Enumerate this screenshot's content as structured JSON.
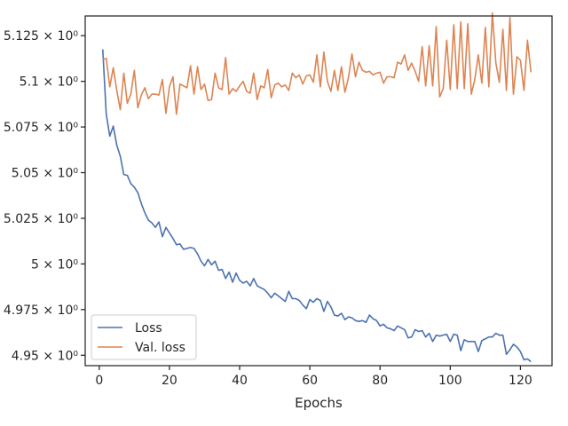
{
  "chart_data": {
    "type": "line",
    "title": "",
    "xlabel": "Epochs",
    "ylabel": "",
    "xlim": [
      -4,
      129
    ],
    "ylim": [
      4.9443,
      5.1358
    ],
    "x_ticks": [
      {
        "value": 0,
        "label": "0"
      },
      {
        "value": 20,
        "label": "20"
      },
      {
        "value": 40,
        "label": "40"
      },
      {
        "value": 60,
        "label": "60"
      },
      {
        "value": 80,
        "label": "80"
      },
      {
        "value": 100,
        "label": "100"
      },
      {
        "value": 120,
        "label": "120"
      }
    ],
    "y_ticks": [
      {
        "value": 4.95,
        "label": "4.95 × 10⁰"
      },
      {
        "value": 4.975,
        "label": "4.975 × 10⁰"
      },
      {
        "value": 5.0,
        "label": "5 × 10⁰"
      },
      {
        "value": 5.025,
        "label": "5.025 × 10⁰"
      },
      {
        "value": 5.05,
        "label": "5.05 × 10⁰"
      },
      {
        "value": 5.075,
        "label": "5.075 × 10⁰"
      },
      {
        "value": 5.1,
        "label": "5.1 × 10⁰"
      },
      {
        "value": 5.125,
        "label": "5.125 × 10⁰"
      }
    ],
    "grid": false,
    "legend_position": "bottom-left",
    "series": [
      {
        "name": "Loss",
        "color": "#4c72b0",
        "x": [
          1,
          2,
          3,
          4,
          5,
          6,
          7,
          8,
          9,
          10,
          11,
          12,
          13,
          14,
          15,
          16,
          17,
          18,
          19,
          20,
          21,
          22,
          23,
          24,
          25,
          26,
          27,
          28,
          29,
          30,
          31,
          32,
          33,
          34,
          35,
          36,
          37,
          38,
          39,
          40,
          41,
          42,
          43,
          44,
          45,
          46,
          47,
          48,
          49,
          50,
          51,
          52,
          53,
          54,
          55,
          56,
          57,
          58,
          59,
          60,
          61,
          62,
          63,
          64,
          65,
          66,
          67,
          68,
          69,
          70,
          71,
          72,
          73,
          74,
          75,
          76,
          77,
          78,
          79,
          80,
          81,
          82,
          83,
          84,
          85,
          86,
          87,
          88,
          89,
          90,
          91,
          92,
          93,
          94,
          95,
          96,
          97,
          98,
          99,
          100,
          101,
          102,
          103,
          104,
          105,
          106,
          107,
          108,
          109,
          110,
          111,
          112,
          113,
          114,
          115,
          116,
          117,
          118,
          119,
          120,
          121,
          122,
          123
        ],
        "y": [
          5.1175,
          5.082,
          5.07,
          5.0755,
          5.065,
          5.059,
          5.049,
          5.0485,
          5.044,
          5.042,
          5.039,
          5.033,
          5.028,
          5.024,
          5.0225,
          5.02,
          5.023,
          5.015,
          5.02,
          5.017,
          5.014,
          5.0105,
          5.011,
          5.008,
          5.0085,
          5.009,
          5.0085,
          5.0055,
          5.0015,
          4.999,
          5.0025,
          4.9995,
          5.0015,
          4.9965,
          4.997,
          4.992,
          4.9955,
          4.99,
          4.995,
          4.991,
          4.9895,
          4.9905,
          4.988,
          4.992,
          4.988,
          4.987,
          4.986,
          4.984,
          4.9815,
          4.984,
          4.9825,
          4.981,
          4.9795,
          4.985,
          4.981,
          4.981,
          4.98,
          4.9775,
          4.9755,
          4.9805,
          4.979,
          4.981,
          4.98,
          4.974,
          4.9795,
          4.9765,
          4.972,
          4.9715,
          4.973,
          4.9695,
          4.971,
          4.9705,
          4.969,
          4.9685,
          4.969,
          4.968,
          4.972,
          4.97,
          4.969,
          4.966,
          4.967,
          4.965,
          4.9645,
          4.9635,
          4.966,
          4.965,
          4.964,
          4.9595,
          4.96,
          4.964,
          4.963,
          4.9635,
          4.96,
          4.962,
          4.9575,
          4.961,
          4.9605,
          4.961,
          4.9615,
          4.9575,
          4.9615,
          4.961,
          4.9525,
          4.9585,
          4.9575,
          4.9575,
          4.9575,
          4.952,
          4.958,
          4.959,
          4.96,
          4.96,
          4.962,
          4.961,
          4.961,
          4.9505,
          4.953,
          4.956,
          4.9545,
          4.952,
          4.9475,
          4.948,
          4.9465
        ]
      },
      {
        "name": "Val. loss",
        "color": "#dd8452",
        "x": [
          1,
          2,
          3,
          4,
          5,
          6,
          7,
          8,
          9,
          10,
          11,
          12,
          13,
          14,
          15,
          16,
          17,
          18,
          19,
          20,
          21,
          22,
          23,
          24,
          25,
          26,
          27,
          28,
          29,
          30,
          31,
          32,
          33,
          34,
          35,
          36,
          37,
          38,
          39,
          40,
          41,
          42,
          43,
          44,
          45,
          46,
          47,
          48,
          49,
          50,
          51,
          52,
          53,
          54,
          55,
          56,
          57,
          58,
          59,
          60,
          61,
          62,
          63,
          64,
          65,
          66,
          67,
          68,
          69,
          70,
          71,
          72,
          73,
          74,
          75,
          76,
          77,
          78,
          79,
          80,
          81,
          82,
          83,
          84,
          85,
          86,
          87,
          88,
          89,
          90,
          91,
          92,
          93,
          94,
          95,
          96,
          97,
          98,
          99,
          100,
          101,
          102,
          103,
          104,
          105,
          106,
          107,
          108,
          109,
          110,
          111,
          112,
          113,
          114,
          115,
          116,
          117,
          118,
          119,
          120,
          121,
          122,
          123
        ],
        "y": [
          5.112,
          5.1125,
          5.097,
          5.1075,
          5.095,
          5.0845,
          5.1045,
          5.088,
          5.093,
          5.106,
          5.0855,
          5.0925,
          5.0965,
          5.0905,
          5.093,
          5.093,
          5.0925,
          5.101,
          5.0825,
          5.097,
          5.1025,
          5.082,
          5.0985,
          5.0975,
          5.0965,
          5.1085,
          5.093,
          5.108,
          5.0955,
          5.0985,
          5.0895,
          5.09,
          5.1045,
          5.0965,
          5.0955,
          5.113,
          5.093,
          5.096,
          5.0945,
          5.0975,
          5.1,
          5.0945,
          5.0935,
          5.1045,
          5.09,
          5.0975,
          5.0965,
          5.1065,
          5.091,
          5.098,
          5.099,
          5.097,
          5.098,
          5.095,
          5.1045,
          5.102,
          5.1035,
          5.0985,
          5.103,
          5.1035,
          5.0995,
          5.1145,
          5.097,
          5.116,
          5.1,
          5.0945,
          5.106,
          5.095,
          5.108,
          5.094,
          5.102,
          5.115,
          5.1025,
          5.1105,
          5.106,
          5.105,
          5.1055,
          5.1035,
          5.1045,
          5.105,
          5.099,
          5.1025,
          5.1025,
          5.102,
          5.1105,
          5.1095,
          5.1145,
          5.106,
          5.11,
          5.1055,
          5.1,
          5.119,
          5.0975,
          5.1195,
          5.0975,
          5.13,
          5.0915,
          5.096,
          5.1225,
          5.0955,
          5.131,
          5.096,
          5.1325,
          5.096,
          5.1315,
          5.093,
          5.101,
          5.1145,
          5.099,
          5.1295,
          5.097,
          5.1375,
          5.11,
          5.0995,
          5.1285,
          5.095,
          5.135,
          5.093,
          5.1135,
          5.1115,
          5.095,
          5.1225,
          5.105
        ]
      }
    ]
  }
}
